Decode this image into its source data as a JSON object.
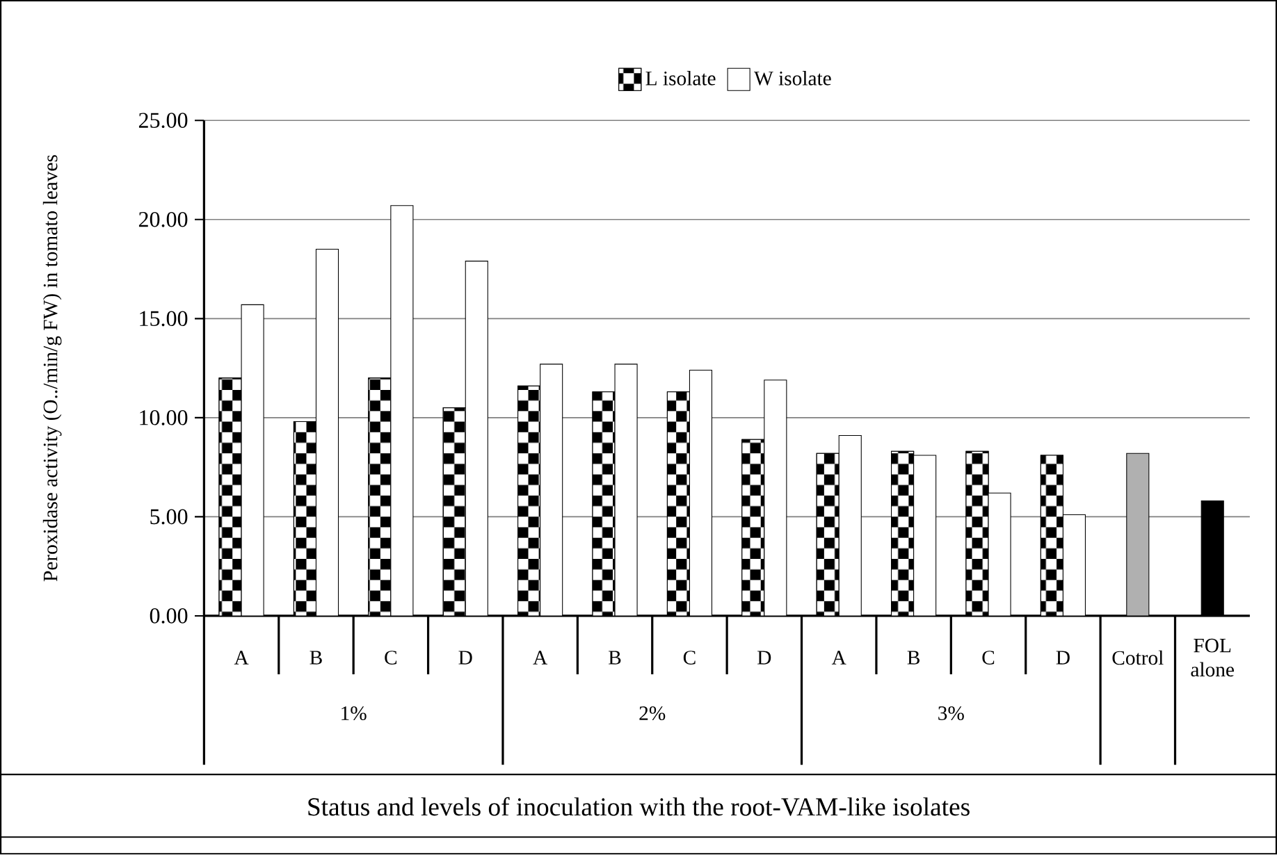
{
  "chart_data": {
    "type": "bar",
    "xlabel": "Status and levels of inoculation with the root-VAM-like isolates",
    "ylabel": "Peroxidase activity (O../min/g FW) in tomato leaves",
    "categories": [
      "A",
      "B",
      "C",
      "D",
      "A",
      "B",
      "C",
      "D",
      "A",
      "B",
      "C",
      "D",
      "Cotrol",
      "FOL alone"
    ],
    "annotations": [
      "1%",
      "2%",
      "3%"
    ],
    "series": [
      {
        "name": "L isolate",
        "color": "#000000",
        "values": [
          12.0,
          9.8,
          12.0,
          10.5,
          11.6,
          11.3,
          11.3,
          8.9,
          8.2,
          8.3,
          8.3,
          8.1,
          null,
          null
        ]
      },
      {
        "name": "W isolate",
        "color": "#ffffff",
        "values": [
          15.7,
          18.5,
          20.7,
          17.9,
          12.7,
          12.7,
          12.4,
          11.9,
          9.1,
          8.1,
          6.2,
          5.1,
          null,
          null
        ]
      },
      {
        "colors": [
          null,
          null,
          null,
          null,
          null,
          null,
          null,
          null,
          null,
          null,
          null,
          null,
          "#b0b0b0",
          "#000000"
        ],
        "values": [
          null,
          null,
          null,
          null,
          null,
          null,
          null,
          null,
          null,
          null,
          null,
          null,
          8.2,
          5.8
        ]
      }
    ],
    "ylim": [
      0,
      25
    ],
    "yticks": [
      {
        "value": 0,
        "label": "0.00"
      },
      {
        "value": 5,
        "label": "5.00"
      },
      {
        "value": 10,
        "label": "10.00"
      },
      {
        "value": 15,
        "label": "15.00"
      },
      {
        "value": 20,
        "label": "20.00"
      },
      {
        "value": 25,
        "label": "25.00"
      }
    ],
    "grid": "y",
    "legend": "top"
  }
}
